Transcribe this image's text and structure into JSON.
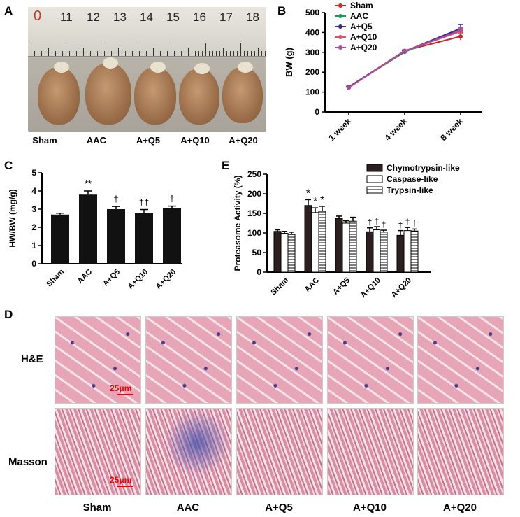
{
  "panels": {
    "a": "A",
    "b": "B",
    "c": "C",
    "d": "D",
    "e": "E"
  },
  "photo": {
    "ruler_marks": [
      "0",
      "11",
      "12",
      "13",
      "14",
      "15",
      "16",
      "17",
      "18"
    ],
    "labels": [
      "Sham",
      "AAC",
      "A+Q5",
      "A+Q10",
      "A+Q20"
    ]
  },
  "colors": {
    "sham": "#d0202a",
    "aac": "#1a9a5a",
    "q5": "#3a2a8a",
    "q10": "#e0506a",
    "q20": "#b04aa0",
    "bar_black": "#111111",
    "bar_dark": "#2b1f1f",
    "scale": "#e00000"
  },
  "chart_data": [
    {
      "id": "B",
      "type": "line",
      "ylabel": "BW (g)",
      "x": [
        "1 week",
        "4 week",
        "8 week"
      ],
      "ylim": [
        0,
        500
      ],
      "yticks": [
        0,
        100,
        200,
        300,
        400,
        500
      ],
      "series": [
        {
          "name": "Sham",
          "values": [
            125,
            308,
            380
          ],
          "err": [
            3,
            5,
            18
          ]
        },
        {
          "name": "AAC",
          "values": [
            124,
            302,
            412
          ],
          "err": [
            3,
            5,
            15
          ]
        },
        {
          "name": "A+Q5",
          "values": [
            126,
            305,
            420
          ],
          "err": [
            3,
            5,
            20
          ]
        },
        {
          "name": "A+Q10",
          "values": [
            122,
            307,
            405
          ],
          "err": [
            3,
            5,
            15
          ]
        },
        {
          "name": "A+Q20",
          "values": [
            123,
            306,
            410
          ],
          "err": [
            3,
            5,
            15
          ]
        }
      ]
    },
    {
      "id": "C",
      "type": "bar",
      "ylabel": "HW/BW (mg/g)",
      "categories": [
        "Sham",
        "AAC",
        "A+Q5",
        "A+Q10",
        "A+Q20"
      ],
      "values": [
        2.7,
        3.8,
        3.0,
        2.8,
        3.05
      ],
      "err": [
        0.08,
        0.2,
        0.15,
        0.18,
        0.12
      ],
      "annotations": [
        "",
        "**",
        "†",
        "††",
        "†"
      ],
      "ylim": [
        0,
        5
      ],
      "yticks": [
        0,
        1,
        2,
        3,
        4,
        5
      ]
    },
    {
      "id": "E",
      "type": "bar",
      "ylabel": "Proteasome Activity (%)",
      "categories": [
        "Sham",
        "AAC",
        "A+Q5",
        "A+Q10",
        "A+Q20"
      ],
      "ylim": [
        0,
        250
      ],
      "yticks": [
        0,
        50,
        100,
        150,
        200,
        250
      ],
      "series": [
        {
          "name": "Chymotrypsin-like",
          "values": [
            104,
            170,
            137,
            103,
            94
          ],
          "err": [
            4,
            15,
            6,
            10,
            12
          ],
          "annotations": [
            "",
            "*",
            "",
            "†",
            "†"
          ]
        },
        {
          "name": "Caspase-like",
          "values": [
            99,
            152,
            125,
            108,
            106
          ],
          "err": [
            5,
            12,
            6,
            8,
            8
          ],
          "annotations": [
            "",
            "*",
            "",
            "†",
            "†"
          ]
        },
        {
          "name": "Trypsin-like",
          "values": [
            96,
            156,
            130,
            102,
            105
          ],
          "err": [
            6,
            12,
            10,
            5,
            5
          ],
          "annotations": [
            "",
            "*",
            "",
            "†",
            "†"
          ]
        }
      ]
    }
  ],
  "histology": {
    "rows": [
      "H&E",
      "Masson"
    ],
    "columns": [
      "Sham",
      "AAC",
      "A+Q5",
      "A+Q10",
      "A+Q20"
    ],
    "scale_bar": "25μm"
  }
}
